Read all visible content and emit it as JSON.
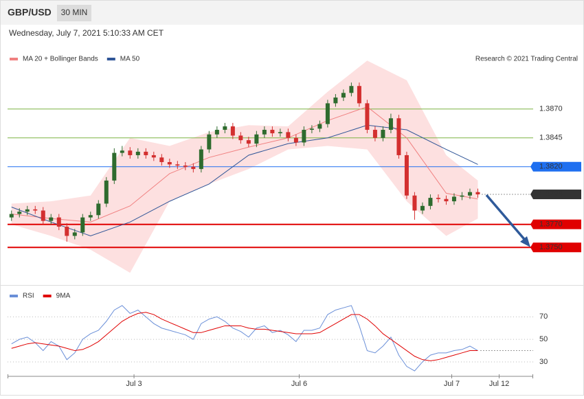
{
  "header": {
    "symbol": "GBP/USD",
    "timeframe": "30 MIN",
    "timestamp": "Wednesday, July 7, 2021 5:10:33 AM CET"
  },
  "chart_data": [
    {
      "type": "candlestick",
      "attribution": "Research © 2021 Trading Central",
      "xlim": [
        -0.5,
        66
      ],
      "ylim": [
        1.3718,
        1.3908
      ],
      "up_color": "#2e6b2e",
      "down_color": "#d32f2f",
      "open": [
        1.3776,
        1.3779,
        1.3781,
        1.3783,
        1.3782,
        1.3773,
        1.3776,
        1.3768,
        1.376,
        1.3763,
        1.3776,
        1.3778,
        1.3788,
        1.3808,
        1.3832,
        1.3834,
        1.383,
        1.3833,
        1.383,
        1.3828,
        1.3824,
        1.3822,
        1.3821,
        1.382,
        1.3818,
        1.3835,
        1.3848,
        1.3852,
        1.3855,
        1.3847,
        1.3843,
        1.384,
        1.3848,
        1.3852,
        1.3849,
        1.385,
        1.3845,
        1.3841,
        1.3852,
        1.3853,
        1.3857,
        1.3875,
        1.388,
        1.3884,
        1.389,
        1.3875,
        1.3852,
        1.3845,
        1.3852,
        1.3862,
        1.383,
        1.3795,
        1.3782,
        1.3786,
        1.3793,
        1.3792,
        1.379,
        1.3794,
        1.3795,
        1.3798
      ],
      "high": [
        1.3782,
        1.3784,
        1.3786,
        1.3786,
        1.3785,
        1.3779,
        1.3779,
        1.3771,
        1.3766,
        1.3779,
        1.3781,
        1.3791,
        1.3811,
        1.3836,
        1.3838,
        1.3837,
        1.3836,
        1.3836,
        1.3833,
        1.3831,
        1.3827,
        1.3825,
        1.3824,
        1.3823,
        1.3838,
        1.3851,
        1.3855,
        1.3858,
        1.3858,
        1.385,
        1.3846,
        1.3851,
        1.3855,
        1.3855,
        1.3853,
        1.3853,
        1.3848,
        1.3855,
        1.3856,
        1.386,
        1.3878,
        1.3883,
        1.3887,
        1.3893,
        1.3893,
        1.3878,
        1.3855,
        1.3855,
        1.3866,
        1.3865,
        1.3833,
        1.3798,
        1.3789,
        1.3796,
        1.3796,
        1.3795,
        1.3797,
        1.3798,
        1.3801,
        1.3801
      ],
      "low": [
        1.3773,
        1.3776,
        1.3778,
        1.3779,
        1.377,
        1.377,
        1.3765,
        1.3755,
        1.3757,
        1.376,
        1.3773,
        1.3775,
        1.3785,
        1.3805,
        1.3829,
        1.3827,
        1.3827,
        1.3827,
        1.3825,
        1.3821,
        1.3819,
        1.3818,
        1.3817,
        1.3815,
        1.3815,
        1.3832,
        1.3845,
        1.3849,
        1.3844,
        1.384,
        1.3837,
        1.3837,
        1.3845,
        1.3846,
        1.3846,
        1.3842,
        1.3838,
        1.3838,
        1.3849,
        1.385,
        1.3854,
        1.3872,
        1.3877,
        1.3881,
        1.3872,
        1.3849,
        1.3842,
        1.3842,
        1.3849,
        1.3827,
        1.3792,
        1.3774,
        1.3779,
        1.3783,
        1.3789,
        1.3787,
        1.3787,
        1.3791,
        1.3792,
        1.3793
      ],
      "close": [
        1.3779,
        1.3781,
        1.3783,
        1.3782,
        1.3773,
        1.3776,
        1.3768,
        1.376,
        1.3763,
        1.3776,
        1.3778,
        1.3788,
        1.3808,
        1.3832,
        1.3834,
        1.383,
        1.3833,
        1.383,
        1.3828,
        1.3824,
        1.3822,
        1.3821,
        1.382,
        1.3818,
        1.3835,
        1.3848,
        1.3852,
        1.3855,
        1.3847,
        1.3843,
        1.384,
        1.3848,
        1.3852,
        1.3849,
        1.385,
        1.3845,
        1.3841,
        1.3852,
        1.3853,
        1.3857,
        1.3875,
        1.388,
        1.3884,
        1.389,
        1.3875,
        1.3852,
        1.3845,
        1.3852,
        1.3862,
        1.383,
        1.3795,
        1.3782,
        1.3786,
        1.3793,
        1.3792,
        1.379,
        1.3794,
        1.3795,
        1.3798,
        1.3796
      ],
      "bands": {
        "name": "MA 20 + Bollinger Bands",
        "color": "#f08080",
        "fill": "#fde0e0",
        "x": [
          0,
          5,
          10,
          15,
          20,
          25,
          30,
          35,
          40,
          45,
          50,
          55,
          59
        ],
        "upper": [
          1.3788,
          1.379,
          1.3795,
          1.3845,
          1.3838,
          1.385,
          1.3856,
          1.3855,
          1.3885,
          1.3912,
          1.3895,
          1.383,
          1.3808
        ],
        "lower": [
          1.377,
          1.376,
          1.3748,
          1.3728,
          1.379,
          1.3805,
          1.3818,
          1.3835,
          1.3838,
          1.3835,
          1.379,
          1.376,
          1.3775
        ],
        "values": [
          1.3779,
          1.3775,
          1.3772,
          1.3786,
          1.3814,
          1.3828,
          1.3837,
          1.3845,
          1.386,
          1.3872,
          1.3845,
          1.3797,
          1.3792
        ]
      },
      "ma50": {
        "name": "MA 50",
        "color": "#2f5597",
        "x": [
          0,
          5,
          10,
          15,
          20,
          25,
          30,
          35,
          40,
          45,
          50,
          55,
          59
        ],
        "values": [
          1.3785,
          1.3772,
          1.376,
          1.3772,
          1.379,
          1.3805,
          1.383,
          1.384,
          1.3845,
          1.3856,
          1.3852,
          1.3835,
          1.3822
        ]
      },
      "levels": [
        {
          "value": 1.387,
          "label": "1.3870",
          "color": "#7cb342",
          "style": "thin",
          "boxed": false
        },
        {
          "value": 1.3845,
          "label": "1.3845",
          "color": "#7cb342",
          "style": "thin",
          "boxed": false
        },
        {
          "value": 1.382,
          "label": "1.3820",
          "color": "#1e6ff0",
          "style": "thin",
          "boxed": true
        },
        {
          "value": 1.3796,
          "label": "1.3796",
          "color": "#333333",
          "style": "dotted",
          "boxed": true
        },
        {
          "value": 1.377,
          "label": "1.3770",
          "color": "#e00000",
          "style": "thick",
          "boxed": true
        },
        {
          "value": 1.375,
          "label": "1.3750",
          "color": "#e00000",
          "style": "thick",
          "boxed": true
        }
      ]
    },
    {
      "type": "line",
      "xlim": [
        -0.5,
        66
      ],
      "ylim": [
        19,
        83
      ],
      "yticks": [
        30,
        50,
        70
      ],
      "xticks": [
        {
          "value": 15.5,
          "label": "Jul 3"
        },
        {
          "value": 36.4,
          "label": "Jul 6"
        },
        {
          "value": 55.7,
          "label": "Jul 7"
        },
        {
          "value": 61.7,
          "label": "Jul 12"
        }
      ],
      "series": [
        {
          "name": "RSI",
          "color": "#6a8fd8",
          "values": [
            46,
            50,
            52,
            47,
            40,
            48,
            44,
            32,
            38,
            50,
            55,
            58,
            66,
            76,
            80,
            73,
            76,
            70,
            64,
            60,
            58,
            56,
            54,
            50,
            64,
            68,
            70,
            66,
            60,
            57,
            52,
            60,
            62,
            56,
            58,
            54,
            48,
            58,
            58,
            60,
            72,
            76,
            78,
            80,
            62,
            40,
            38,
            44,
            52,
            36,
            26,
            22,
            30,
            36,
            38,
            38,
            40,
            41,
            44,
            40
          ]
        },
        {
          "name": "9MA",
          "color": "#e00000",
          "values": [
            42,
            44,
            46,
            47,
            46,
            45,
            44,
            42,
            40,
            41,
            44,
            48,
            54,
            60,
            66,
            70,
            73,
            74,
            72,
            68,
            65,
            62,
            59,
            56,
            56,
            58,
            60,
            62,
            62,
            62,
            60,
            59,
            59,
            58,
            57,
            56,
            55,
            55,
            55,
            56,
            60,
            64,
            68,
            72,
            72,
            68,
            62,
            55,
            50,
            45,
            40,
            35,
            32,
            31,
            32,
            34,
            36,
            38,
            40,
            40
          ]
        }
      ]
    }
  ]
}
